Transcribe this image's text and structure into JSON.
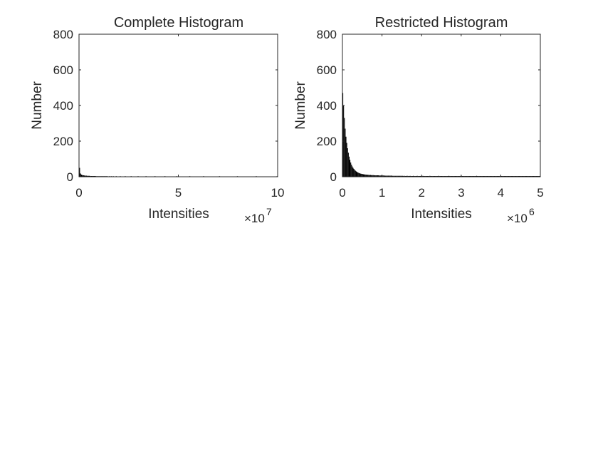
{
  "chart_data": [
    {
      "type": "bar",
      "title": "Complete Histogram",
      "xlabel": "Intensities",
      "ylabel": "Number",
      "xlim": [
        0,
        10
      ],
      "ylim": [
        0,
        800
      ],
      "x_exponent_label": "×10",
      "x_exponent": "7",
      "x_ticks": [
        {
          "value": 0,
          "label": "0"
        },
        {
          "value": 5,
          "label": "5"
        },
        {
          "value": 10,
          "label": "10"
        }
      ],
      "y_ticks": [
        {
          "value": 0,
          "label": "0"
        },
        {
          "value": 200,
          "label": "200"
        },
        {
          "value": 400,
          "label": "400"
        },
        {
          "value": 600,
          "label": "600"
        },
        {
          "value": 800,
          "label": "800"
        }
      ],
      "bin_width": 0.05,
      "values": [
        50,
        18,
        12,
        9,
        8,
        7,
        6,
        6,
        5,
        5,
        5,
        4,
        4,
        4,
        4,
        4,
        4,
        3,
        3,
        3,
        3,
        3,
        3,
        3,
        3,
        3,
        3,
        3,
        3,
        2,
        3,
        2,
        3,
        2,
        3,
        2,
        2,
        3,
        2,
        2,
        2,
        3,
        2,
        2,
        2,
        2,
        3,
        2,
        2,
        2,
        2,
        2,
        3,
        2,
        2,
        2,
        2,
        2,
        2,
        3,
        2,
        2,
        2,
        2,
        2,
        2,
        2,
        3,
        2,
        2,
        2,
        2,
        2,
        2,
        2,
        2,
        3,
        2,
        2,
        2,
        2,
        2,
        2,
        2,
        2,
        2,
        3,
        2,
        2,
        2,
        2,
        2,
        2,
        2,
        2,
        2,
        2,
        2,
        3,
        2,
        2,
        2,
        2,
        2,
        2,
        2,
        2,
        2,
        2,
        2,
        2,
        3,
        2,
        2,
        2,
        2,
        2,
        2,
        2,
        2,
        2,
        2,
        2,
        2,
        2,
        3,
        2,
        2,
        2,
        2,
        2,
        2,
        2,
        2,
        2,
        2,
        2,
        2,
        2,
        2,
        2,
        3,
        2,
        2,
        2,
        2,
        2,
        2,
        2,
        2,
        2,
        2,
        2,
        2,
        2,
        2,
        2,
        2,
        2,
        3,
        2,
        2,
        2,
        2,
        2,
        2,
        2,
        2,
        2,
        2,
        2,
        2,
        2,
        2,
        2,
        2,
        2,
        2,
        3,
        2,
        2,
        2,
        2,
        2,
        2,
        2,
        2,
        2,
        2,
        2,
        2,
        2,
        2,
        2,
        2,
        2,
        2,
        2,
        2,
        3
      ]
    },
    {
      "type": "bar",
      "title": "Restricted Histogram",
      "xlabel": "Intensities",
      "ylabel": "Number",
      "xlim": [
        0,
        5
      ],
      "ylim": [
        0,
        800
      ],
      "x_exponent_label": "×10",
      "x_exponent": "6",
      "x_ticks": [
        {
          "value": 0,
          "label": "0"
        },
        {
          "value": 1,
          "label": "1"
        },
        {
          "value": 2,
          "label": "2"
        },
        {
          "value": 3,
          "label": "3"
        },
        {
          "value": 4,
          "label": "4"
        },
        {
          "value": 5,
          "label": "5"
        }
      ],
      "y_ticks": [
        {
          "value": 0,
          "label": "0"
        },
        {
          "value": 200,
          "label": "200"
        },
        {
          "value": 400,
          "label": "400"
        },
        {
          "value": 600,
          "label": "600"
        },
        {
          "value": 800,
          "label": "800"
        }
      ],
      "bin_width": 0.02,
      "values": [
        470,
        400,
        330,
        270,
        225,
        190,
        160,
        135,
        113,
        95,
        80,
        68,
        58,
        50,
        44,
        38,
        34,
        30,
        27,
        24,
        22,
        20,
        18,
        17,
        16,
        15,
        14,
        13,
        13,
        12,
        12,
        11,
        11,
        10,
        10,
        10,
        9,
        9,
        9,
        9,
        8,
        8,
        8,
        8,
        8,
        8,
        7,
        7,
        7,
        7,
        7,
        7,
        7,
        6,
        6,
        6,
        6,
        6,
        6,
        6,
        6,
        6,
        6,
        5,
        5,
        5,
        5,
        5,
        5,
        5,
        5,
        5,
        5,
        5,
        5,
        5,
        5,
        4,
        5,
        4,
        5,
        4,
        5,
        4,
        4,
        5,
        4,
        4,
        4,
        5,
        4,
        4,
        4,
        4,
        5,
        4,
        4,
        4,
        4,
        4,
        4,
        5,
        4,
        4,
        4,
        4,
        4,
        4,
        4,
        4,
        5,
        4,
        4,
        4,
        4,
        4,
        4,
        4,
        4,
        4,
        4,
        5,
        4,
        4,
        4,
        4,
        4,
        4,
        4,
        4,
        4,
        4,
        4,
        4,
        5,
        4,
        4,
        4,
        4,
        4,
        4,
        4,
        4,
        4,
        4,
        4,
        4,
        4,
        4,
        4,
        5,
        4,
        4,
        4,
        4,
        4,
        4,
        4,
        4,
        4,
        4,
        4,
        4,
        4,
        4,
        4,
        4,
        4,
        4,
        5,
        4,
        4,
        4,
        4,
        4,
        4,
        4,
        4,
        4,
        4,
        4,
        4,
        4,
        4,
        4,
        4,
        4,
        4,
        4,
        4,
        4,
        4,
        4,
        4,
        4,
        4,
        4,
        4,
        4,
        4,
        4,
        4,
        4,
        4,
        4,
        4,
        4,
        4,
        4,
        4,
        4,
        4,
        4,
        4,
        4,
        4,
        4,
        4,
        4,
        4,
        4,
        4,
        4,
        4,
        4,
        4,
        4,
        4,
        4,
        4,
        4,
        4,
        4,
        4,
        4,
        4,
        4,
        4,
        4,
        4,
        4,
        4,
        4,
        4,
        4,
        4,
        4,
        4,
        4,
        4
      ]
    }
  ]
}
